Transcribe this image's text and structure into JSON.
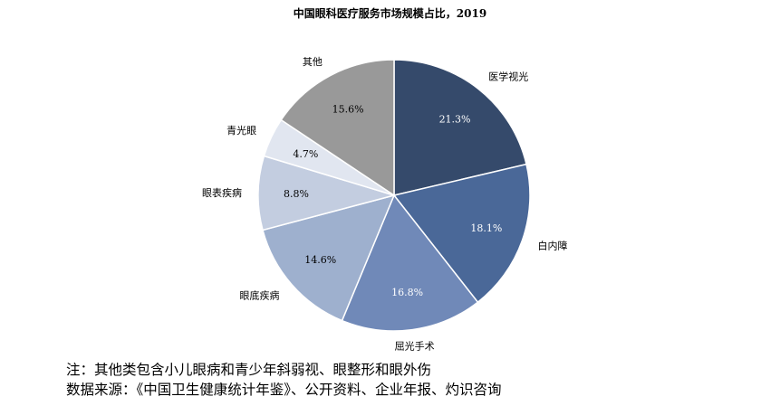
{
  "chart_data": {
    "type": "pie",
    "title": "中国眼科医疗服务市场规模占比，2019",
    "slices": [
      {
        "label": "医学视光",
        "value": 21.3,
        "value_label": "21.3%",
        "color": "#354a6b"
      },
      {
        "label": "白内障",
        "value": 18.1,
        "value_label": "18.1%",
        "color": "#4a6898"
      },
      {
        "label": "屈光手术",
        "value": 16.8,
        "value_label": "16.8%",
        "color": "#7089b8"
      },
      {
        "label": "眼底疾病",
        "value": 14.6,
        "value_label": "14.6%",
        "color": "#9eb0ce"
      },
      {
        "label": "眼表疾病",
        "value": 8.8,
        "value_label": "8.8%",
        "color": "#c3cde0"
      },
      {
        "label": "青光眼",
        "value": 4.7,
        "value_label": "4.7%",
        "color": "#e1e6f0"
      },
      {
        "label": "其他",
        "value": 15.6,
        "value_label": "15.6%",
        "color": "#999999"
      }
    ],
    "start_angle": "12 o'clock",
    "direction": "clockwise",
    "legend": "none"
  },
  "footnote": {
    "note": "注：其他类包含小儿眼病和青少年斜弱视、眼整形和眼外伤",
    "source": "数据来源：《中国卫生健康统计年鉴》、公开资料、企业年报、灼识咨询"
  }
}
